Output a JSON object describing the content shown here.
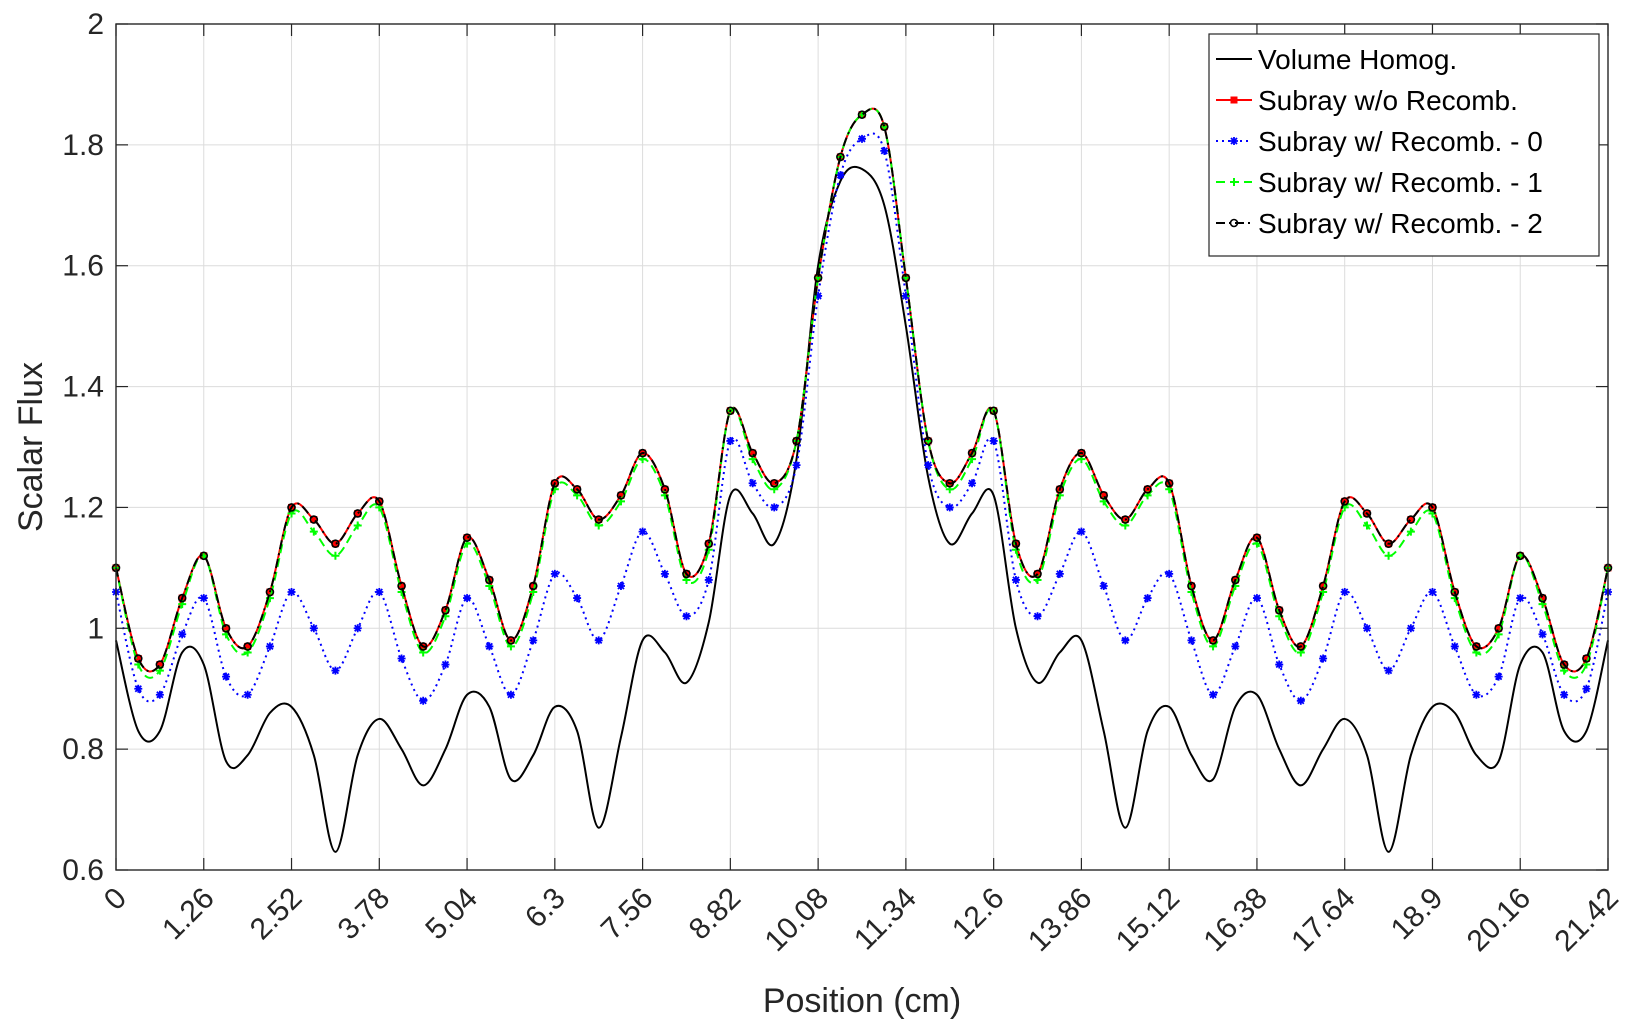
{
  "chart_data": {
    "type": "line",
    "title": "",
    "xlabel": "Position (cm)",
    "ylabel": "Scalar Flux",
    "xlim": [
      0,
      21.42
    ],
    "ylim": [
      0.6,
      2.0
    ],
    "xticks": [
      "0",
      "1.26",
      "2.52",
      "3.78",
      "5.04",
      "6.3",
      "7.56",
      "8.82",
      "10.08",
      "11.34",
      "12.6",
      "13.86",
      "15.12",
      "16.38",
      "17.64",
      "18.9",
      "20.16",
      "21.42"
    ],
    "yticks": [
      "0.6",
      "0.8",
      "1",
      "1.2",
      "1.4",
      "1.6",
      "1.8",
      "2"
    ],
    "grid": true,
    "legend_position": "top-right",
    "x": [
      0,
      0.32,
      0.63,
      0.95,
      1.26,
      1.58,
      1.89,
      2.21,
      2.52,
      2.84,
      3.15,
      3.47,
      3.78,
      4.1,
      4.41,
      4.73,
      5.04,
      5.36,
      5.67,
      5.99,
      6.3,
      6.62,
      6.93,
      7.25,
      7.56,
      7.88,
      8.19,
      8.51,
      8.82,
      9.14,
      9.45,
      9.77,
      10.08,
      10.4,
      10.71,
      11.03,
      11.34,
      11.66,
      11.97,
      12.29,
      12.6,
      12.92,
      13.23,
      13.55,
      13.86,
      14.18,
      14.49,
      14.81,
      15.12,
      15.44,
      15.75,
      16.07,
      16.38,
      16.7,
      17.01,
      17.33,
      17.64,
      17.96,
      18.27,
      18.59,
      18.9,
      19.22,
      19.53,
      19.85,
      20.16,
      20.48,
      20.79,
      21.11,
      21.42
    ],
    "series": [
      {
        "name": "Volume Homog.",
        "color": "#000000",
        "dash": "solid",
        "marker": "none",
        "values": [
          0.98,
          0.83,
          0.83,
          0.96,
          0.94,
          0.78,
          0.79,
          0.86,
          0.87,
          0.79,
          0.63,
          0.79,
          0.85,
          0.8,
          0.74,
          0.8,
          0.89,
          0.87,
          0.75,
          0.79,
          0.87,
          0.83,
          0.67,
          0.82,
          0.98,
          0.96,
          0.91,
          1.01,
          1.22,
          1.19,
          1.14,
          1.28,
          1.6,
          1.74,
          1.76,
          1.7,
          1.5,
          1.25,
          1.14,
          1.19,
          1.22,
          1.0,
          0.91,
          0.96,
          0.98,
          0.83,
          0.67,
          0.83,
          0.87,
          0.79,
          0.75,
          0.87,
          0.89,
          0.8,
          0.74,
          0.8,
          0.85,
          0.79,
          0.63,
          0.79,
          0.87,
          0.86,
          0.79,
          0.78,
          0.94,
          0.96,
          0.83,
          0.83,
          0.98
        ]
      },
      {
        "name": "Subray w/o Recomb.",
        "color": "#ff0000",
        "dash": "solid",
        "marker": "square",
        "values": [
          1.1,
          0.95,
          0.94,
          1.05,
          1.12,
          1.0,
          0.97,
          1.06,
          1.2,
          1.18,
          1.14,
          1.19,
          1.21,
          1.07,
          0.97,
          1.03,
          1.15,
          1.08,
          0.98,
          1.07,
          1.24,
          1.23,
          1.18,
          1.22,
          1.29,
          1.23,
          1.09,
          1.14,
          1.36,
          1.29,
          1.24,
          1.31,
          1.58,
          1.78,
          1.85,
          1.83,
          1.58,
          1.31,
          1.24,
          1.29,
          1.36,
          1.14,
          1.09,
          1.23,
          1.29,
          1.22,
          1.18,
          1.23,
          1.24,
          1.07,
          0.98,
          1.08,
          1.15,
          1.03,
          0.97,
          1.07,
          1.21,
          1.19,
          1.14,
          1.18,
          1.2,
          1.06,
          0.97,
          1.0,
          1.12,
          1.05,
          0.94,
          0.95,
          1.1
        ]
      },
      {
        "name": "Subray w/ Recomb. - 0",
        "color": "#0000ff",
        "dash": "dotted",
        "marker": "star",
        "values": [
          1.06,
          0.9,
          0.89,
          0.99,
          1.05,
          0.92,
          0.89,
          0.97,
          1.06,
          1.0,
          0.93,
          1.0,
          1.06,
          0.95,
          0.88,
          0.94,
          1.05,
          0.97,
          0.89,
          0.98,
          1.09,
          1.05,
          0.98,
          1.07,
          1.16,
          1.09,
          1.02,
          1.08,
          1.31,
          1.24,
          1.2,
          1.27,
          1.55,
          1.75,
          1.81,
          1.79,
          1.55,
          1.27,
          1.2,
          1.24,
          1.31,
          1.08,
          1.02,
          1.09,
          1.16,
          1.07,
          0.98,
          1.05,
          1.09,
          0.98,
          0.89,
          0.97,
          1.05,
          0.94,
          0.88,
          0.95,
          1.06,
          1.0,
          0.93,
          1.0,
          1.06,
          0.97,
          0.89,
          0.92,
          1.05,
          0.99,
          0.89,
          0.9,
          1.06
        ]
      },
      {
        "name": "Subray w/ Recomb. - 1",
        "color": "#00ff00",
        "dash": "dashed",
        "marker": "plus",
        "values": [
          1.1,
          0.94,
          0.93,
          1.04,
          1.12,
          0.99,
          0.96,
          1.05,
          1.19,
          1.16,
          1.12,
          1.17,
          1.2,
          1.06,
          0.96,
          1.02,
          1.14,
          1.07,
          0.97,
          1.06,
          1.23,
          1.22,
          1.17,
          1.21,
          1.28,
          1.22,
          1.08,
          1.13,
          1.36,
          1.28,
          1.23,
          1.31,
          1.58,
          1.78,
          1.85,
          1.83,
          1.58,
          1.31,
          1.23,
          1.28,
          1.36,
          1.13,
          1.08,
          1.22,
          1.28,
          1.21,
          1.17,
          1.22,
          1.23,
          1.06,
          0.97,
          1.07,
          1.14,
          1.02,
          0.96,
          1.06,
          1.2,
          1.17,
          1.12,
          1.16,
          1.19,
          1.05,
          0.96,
          0.99,
          1.12,
          1.04,
          0.93,
          0.94,
          1.1
        ]
      },
      {
        "name": "Subray w/ Recomb. - 2",
        "color": "#000000",
        "dash": "dashdot",
        "marker": "circle",
        "values": [
          1.1,
          0.95,
          0.94,
          1.05,
          1.12,
          1.0,
          0.97,
          1.06,
          1.2,
          1.18,
          1.14,
          1.19,
          1.21,
          1.07,
          0.97,
          1.03,
          1.15,
          1.08,
          0.98,
          1.07,
          1.24,
          1.23,
          1.18,
          1.22,
          1.29,
          1.23,
          1.09,
          1.14,
          1.36,
          1.29,
          1.24,
          1.31,
          1.58,
          1.78,
          1.85,
          1.83,
          1.58,
          1.31,
          1.24,
          1.29,
          1.36,
          1.14,
          1.09,
          1.23,
          1.29,
          1.22,
          1.18,
          1.23,
          1.24,
          1.07,
          0.98,
          1.08,
          1.15,
          1.03,
          0.97,
          1.07,
          1.21,
          1.19,
          1.14,
          1.18,
          1.2,
          1.06,
          0.97,
          1.0,
          1.12,
          1.05,
          0.94,
          0.95,
          1.1
        ]
      }
    ]
  }
}
